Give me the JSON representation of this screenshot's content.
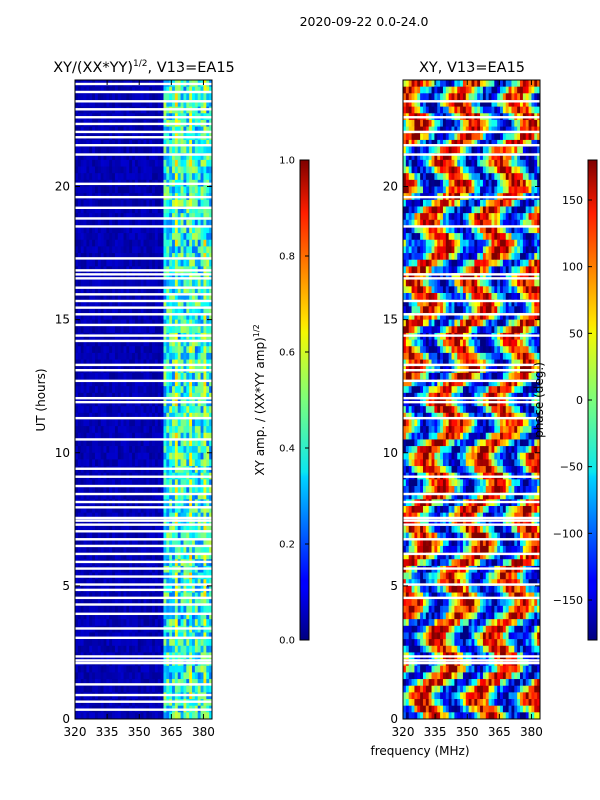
{
  "suptitle": "2020-09-22 0.0-24.0",
  "chart_data": [
    {
      "type": "heatmap",
      "title_main": "XY/(XX*YY)",
      "title_sup": "1/2",
      "title_rest": ", V13=EA15",
      "xlabel": "",
      "ylabel": "UT (hours)",
      "xlim": [
        320,
        384
      ],
      "ylim": [
        0,
        24
      ],
      "xticks": [
        320,
        335,
        350,
        365,
        380
      ],
      "yticks": [
        0,
        5,
        10,
        15,
        20
      ],
      "colorbar": {
        "label_main": "XY amp. / (XX*YY amp)",
        "label_sup": "1/2",
        "range": [
          0.0,
          1.0
        ],
        "ticks": [
          "0.0",
          "0.2",
          "0.4",
          "0.6",
          "0.8",
          "1.0"
        ],
        "colormap": "jet"
      },
      "flagged_rows_hours": [
        0.35,
        0.65,
        0.9,
        1.3,
        2.1,
        2.2,
        2.35,
        3.05,
        3.4,
        3.95,
        4.3,
        4.55,
        4.85,
        5.05,
        5.35,
        5.65,
        5.9,
        6.2,
        6.5,
        6.75,
        7.05,
        7.3,
        7.45,
        7.55,
        7.95,
        8.15,
        8.45,
        8.75,
        9.1,
        9.4,
        10.5,
        11.3,
        11.9,
        12.05,
        12.7,
        13.1,
        13.3,
        14.2,
        14.4,
        14.8,
        15.2,
        15.45,
        15.7,
        15.95,
        16.2,
        16.55,
        16.7,
        16.85,
        17.3,
        18.5,
        18.8,
        19.2,
        19.6,
        20.1,
        21.2,
        21.55,
        21.85,
        22.05,
        22.35,
        22.6,
        22.9,
        23.2,
        23.55,
        23.85
      ],
      "bright_band_mhz": [
        361,
        384
      ]
    },
    {
      "type": "heatmap",
      "title": "XY, V13=EA15",
      "xlabel": "frequency (MHz)",
      "ylabel": "",
      "xlim": [
        320,
        384
      ],
      "ylim": [
        0,
        24
      ],
      "xticks": [
        320,
        335,
        350,
        365,
        380
      ],
      "yticks": [
        0,
        5,
        10,
        15,
        20
      ],
      "colorbar": {
        "label": "phase (deg.)",
        "range": [
          -180,
          180
        ],
        "ticks": [
          "150",
          "100",
          "50",
          "0",
          "−50",
          "−100",
          "−150"
        ],
        "tick_values": [
          150,
          100,
          50,
          0,
          -50,
          -100,
          -150
        ],
        "colormap": "jet"
      },
      "flagged_rows_hours": [
        2.1,
        2.2,
        2.35,
        4.55,
        5.05,
        5.65,
        6.2,
        6.75,
        7.3,
        7.45,
        7.55,
        8.15,
        8.45,
        9.1,
        11.3,
        11.9,
        12.05,
        12.7,
        13.1,
        13.3,
        14.4,
        15.2,
        15.7,
        16.55,
        16.7,
        18.5,
        19.6,
        21.2,
        21.55,
        22.05,
        22.6,
        23.2
      ]
    }
  ]
}
